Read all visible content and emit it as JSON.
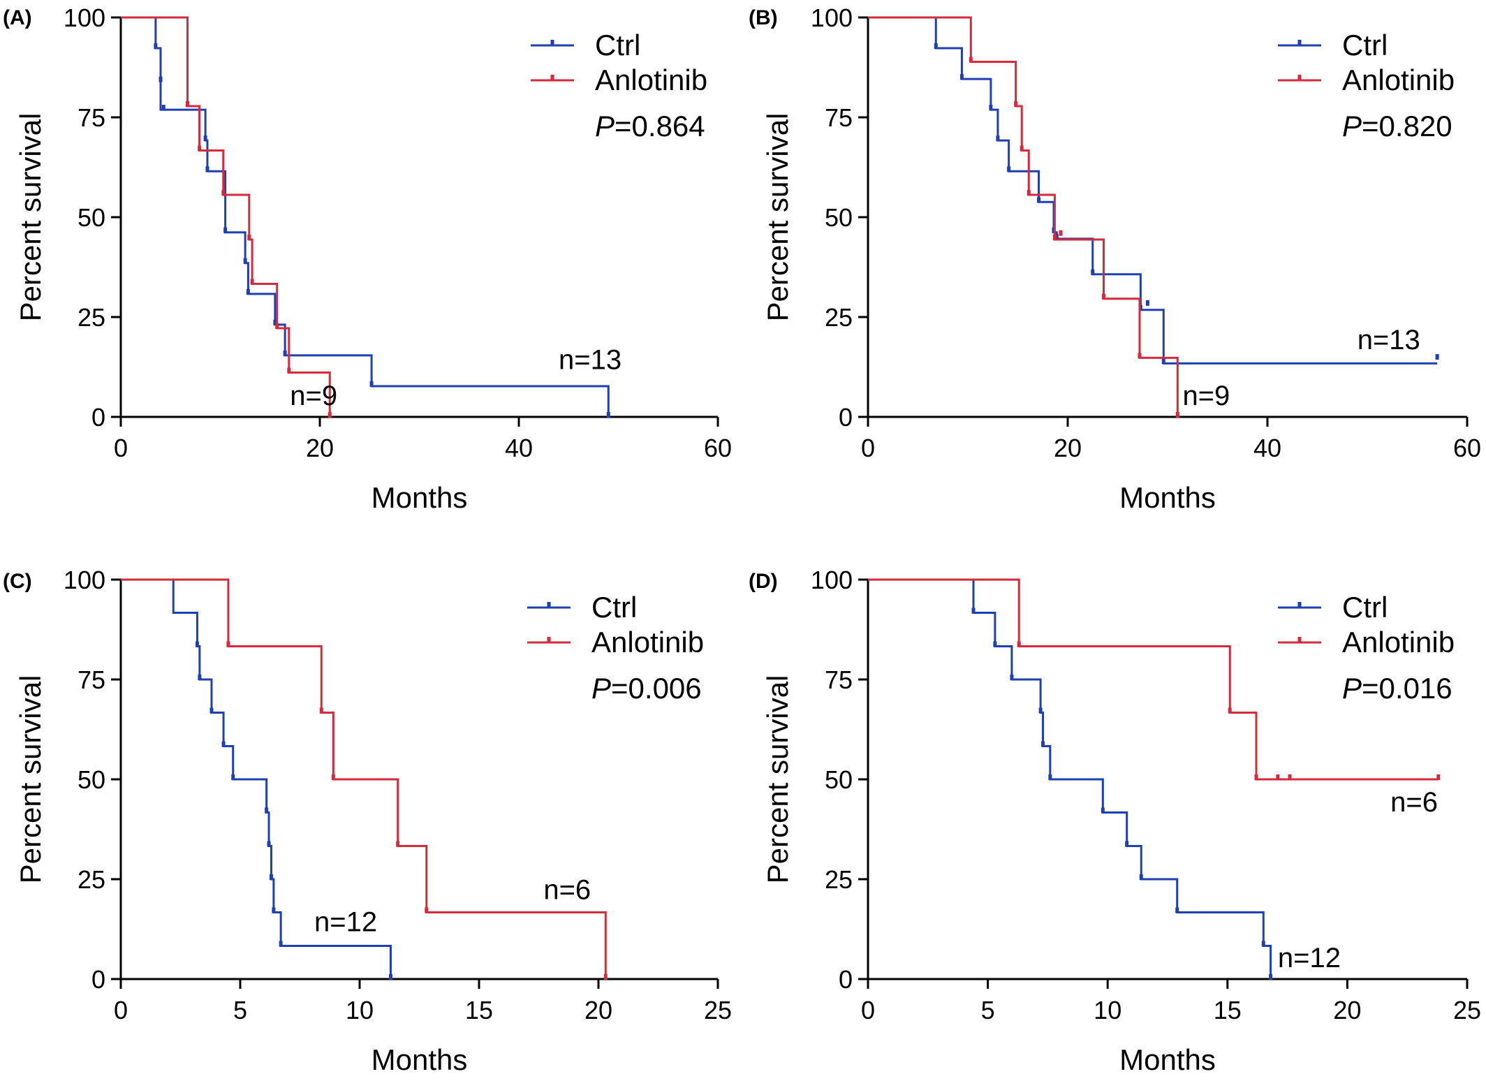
{
  "colors": {
    "ctrl": "#1f3fb5",
    "anlotinib": "#d42a3c",
    "axis": "#000000"
  },
  "chart_data": [
    {
      "type": "line",
      "subtype": "kaplan-meier",
      "panel_label": "(A)",
      "xlabel": "Months",
      "ylabel": "Percent survival",
      "xlim": [
        0,
        60
      ],
      "ylim": [
        0,
        100
      ],
      "xticks": [
        0,
        20,
        40,
        60
      ],
      "yticks": [
        0,
        25,
        50,
        75,
        100
      ],
      "legend": {
        "position": "top-right",
        "entries": [
          "Ctrl",
          "Anlotinib"
        ]
      },
      "p_value": {
        "label": "P",
        "value": "=0.864"
      },
      "series": [
        {
          "name": "Ctrl",
          "color": "#1f3fb5",
          "steps": [
            [
              0,
              100
            ],
            [
              3.5,
              92.3
            ],
            [
              4,
              76.9
            ],
            [
              8.5,
              69.2
            ],
            [
              8.7,
              61.5
            ],
            [
              10.5,
              46.2
            ],
            [
              12.5,
              38.5
            ],
            [
              12.8,
              30.8
            ],
            [
              15.5,
              23.1
            ],
            [
              16.5,
              15.4
            ],
            [
              25.2,
              7.7
            ],
            [
              49,
              0
            ]
          ],
          "censored": [
            [
              3.5,
              92.3
            ],
            [
              4,
              84
            ],
            [
              4.3,
              76.9
            ],
            [
              8.5,
              69.2
            ],
            [
              8.7,
              61.5
            ],
            [
              10.5,
              46.2
            ],
            [
              12.5,
              38.5
            ],
            [
              12.8,
              30.8
            ],
            [
              15.5,
              23.1
            ],
            [
              16.5,
              15.4
            ],
            [
              25.2,
              7.7
            ],
            [
              49,
              0
            ]
          ],
          "n_label": {
            "text": "n=13",
            "x": 44,
            "y": 12
          }
        },
        {
          "name": "Anlotinib",
          "color": "#d42a3c",
          "steps": [
            [
              0,
              100
            ],
            [
              6.7,
              77.8
            ],
            [
              7.9,
              66.7
            ],
            [
              10.3,
              55.6
            ],
            [
              12.9,
              44.4
            ],
            [
              13.2,
              33.3
            ],
            [
              15.7,
              22.2
            ],
            [
              16.9,
              11.1
            ],
            [
              21,
              0
            ]
          ],
          "censored": [
            [
              6.7,
              77.8
            ],
            [
              7.9,
              66.7
            ],
            [
              10.3,
              55.6
            ],
            [
              12.9,
              44.4
            ],
            [
              13.2,
              33.3
            ],
            [
              15.7,
              22.2
            ],
            [
              16.9,
              11.1
            ],
            [
              21,
              0
            ]
          ],
          "n_label": {
            "text": "n=9",
            "x": 17,
            "y": 3
          }
        }
      ]
    },
    {
      "type": "line",
      "subtype": "kaplan-meier",
      "panel_label": "(B)",
      "xlabel": "Months",
      "ylabel": "Percent survival",
      "xlim": [
        0,
        60
      ],
      "ylim": [
        0,
        100
      ],
      "xticks": [
        0,
        20,
        40,
        60
      ],
      "yticks": [
        0,
        25,
        50,
        75,
        100
      ],
      "legend": {
        "position": "top-right",
        "entries": [
          "Ctrl",
          "Anlotinib"
        ]
      },
      "p_value": {
        "label": "P",
        "value": "=0.820"
      },
      "series": [
        {
          "name": "Ctrl",
          "color": "#1f3fb5",
          "steps": [
            [
              0,
              100
            ],
            [
              6.8,
              92.3
            ],
            [
              9.4,
              84.6
            ],
            [
              12.3,
              76.9
            ],
            [
              13,
              69.2
            ],
            [
              14.1,
              61.5
            ],
            [
              17.1,
              53.8
            ],
            [
              18.6,
              46.2
            ],
            [
              18.9,
              44.6
            ],
            [
              22.5,
              35.7
            ],
            [
              27.3,
              26.8
            ],
            [
              29.6,
              13.4
            ],
            [
              57,
              13.4
            ]
          ],
          "censored": [
            [
              6.8,
              92.3
            ],
            [
              9.4,
              84.6
            ],
            [
              12.3,
              76.9
            ],
            [
              13,
              69.2
            ],
            [
              14.1,
              61.5
            ],
            [
              17.1,
              53.8
            ],
            [
              18.6,
              46.2
            ],
            [
              18.9,
              44.6
            ],
            [
              22.5,
              35.7
            ],
            [
              27.3,
              26.8
            ],
            [
              28,
              28
            ],
            [
              29.6,
              13.4
            ],
            [
              57,
              14.5
            ]
          ],
          "n_label": {
            "text": "n=13",
            "x": 49,
            "y": 17
          }
        },
        {
          "name": "Anlotinib",
          "color": "#d42a3c",
          "steps": [
            [
              0,
              100
            ],
            [
              10.3,
              88.9
            ],
            [
              14.8,
              77.8
            ],
            [
              15.4,
              66.7
            ],
            [
              16.1,
              55.6
            ],
            [
              18.7,
              44.4
            ],
            [
              23.6,
              29.6
            ],
            [
              27.2,
              14.8
            ],
            [
              31,
              0
            ]
          ],
          "censored": [
            [
              10.3,
              88.9
            ],
            [
              14.8,
              77.8
            ],
            [
              15.4,
              66.7
            ],
            [
              16.1,
              55.6
            ],
            [
              18.7,
              44.4
            ],
            [
              19.3,
              45.5
            ],
            [
              23.6,
              29.6
            ],
            [
              27.2,
              14.8
            ],
            [
              31,
              0
            ]
          ],
          "n_label": {
            "text": "n=9",
            "x": 31.5,
            "y": 3
          }
        }
      ]
    },
    {
      "type": "line",
      "subtype": "kaplan-meier",
      "panel_label": "(C)",
      "xlabel": "Months",
      "ylabel": "Percent survival",
      "xlim": [
        0,
        25
      ],
      "ylim": [
        0,
        100
      ],
      "xticks": [
        0,
        5,
        10,
        15,
        20,
        25
      ],
      "yticks": [
        0,
        25,
        50,
        75,
        100
      ],
      "legend": {
        "position": "top-right",
        "entries": [
          "Ctrl",
          "Anlotinib"
        ]
      },
      "p_value": {
        "label": "P",
        "value": "=0.006"
      },
      "series": [
        {
          "name": "Ctrl",
          "color": "#1f3fb5",
          "steps": [
            [
              0,
              100
            ],
            [
              2.2,
              91.7
            ],
            [
              3.2,
              83.3
            ],
            [
              3.3,
              75
            ],
            [
              3.8,
              66.7
            ],
            [
              4.3,
              58.3
            ],
            [
              4.7,
              50
            ],
            [
              6.1,
              41.7
            ],
            [
              6.2,
              33.3
            ],
            [
              6.3,
              25
            ],
            [
              6.4,
              16.7
            ],
            [
              6.7,
              8.3
            ],
            [
              11.3,
              0
            ]
          ],
          "censored": [
            [
              3.2,
              83.3
            ],
            [
              3.3,
              75
            ],
            [
              3.8,
              66.7
            ],
            [
              4.3,
              58.3
            ],
            [
              4.7,
              50
            ],
            [
              6.1,
              41.7
            ],
            [
              6.2,
              33.3
            ],
            [
              6.3,
              25
            ],
            [
              6.4,
              16.7
            ],
            [
              6.7,
              8.3
            ],
            [
              11.3,
              0
            ]
          ],
          "n_label": {
            "text": "n=12",
            "x": 8.1,
            "y": 12
          }
        },
        {
          "name": "Anlotinib",
          "color": "#d42a3c",
          "steps": [
            [
              0,
              100
            ],
            [
              4.5,
              83.3
            ],
            [
              8.4,
              66.7
            ],
            [
              8.9,
              50
            ],
            [
              11.6,
              33.3
            ],
            [
              12.8,
              16.7
            ],
            [
              20.3,
              0
            ]
          ],
          "censored": [
            [
              4.5,
              83.3
            ],
            [
              8.4,
              66.7
            ],
            [
              8.9,
              50
            ],
            [
              11.6,
              33.3
            ],
            [
              12.8,
              16.7
            ],
            [
              20.3,
              0
            ]
          ],
          "n_label": {
            "text": "n=6",
            "x": 17.7,
            "y": 20
          }
        }
      ]
    },
    {
      "type": "line",
      "subtype": "kaplan-meier",
      "panel_label": "(D)",
      "xlabel": "Months",
      "ylabel": "Percent survival",
      "xlim": [
        0,
        25
      ],
      "ylim": [
        0,
        100
      ],
      "xticks": [
        0,
        5,
        10,
        15,
        20,
        25
      ],
      "yticks": [
        0,
        25,
        50,
        75,
        100
      ],
      "legend": {
        "position": "top-right",
        "entries": [
          "Ctrl",
          "Anlotinib"
        ]
      },
      "p_value": {
        "label": "P",
        "value": "=0.016"
      },
      "series": [
        {
          "name": "Ctrl",
          "color": "#1f3fb5",
          "steps": [
            [
              0,
              100
            ],
            [
              4.4,
              91.7
            ],
            [
              5.3,
              83.3
            ],
            [
              6.0,
              75
            ],
            [
              7.2,
              66.7
            ],
            [
              7.3,
              58.3
            ],
            [
              7.6,
              50
            ],
            [
              9.8,
              41.7
            ],
            [
              10.8,
              33.3
            ],
            [
              11.4,
              25
            ],
            [
              12.9,
              16.7
            ],
            [
              16.5,
              8.3
            ],
            [
              16.8,
              0
            ]
          ],
          "censored": [
            [
              4.4,
              91.7
            ],
            [
              5.3,
              83.3
            ],
            [
              6.0,
              75
            ],
            [
              7.2,
              66.7
            ],
            [
              7.3,
              58.3
            ],
            [
              7.6,
              50
            ],
            [
              9.8,
              41.7
            ],
            [
              10.8,
              33.3
            ],
            [
              11.4,
              25
            ],
            [
              12.9,
              16.7
            ],
            [
              16.5,
              8.3
            ],
            [
              16.8,
              0
            ]
          ],
          "n_label": {
            "text": "n=12",
            "x": 17.1,
            "y": 3
          }
        },
        {
          "name": "Anlotinib",
          "color": "#d42a3c",
          "steps": [
            [
              0,
              100
            ],
            [
              6.3,
              83.3
            ],
            [
              15.1,
              66.7
            ],
            [
              16.2,
              50
            ],
            [
              23.8,
              50
            ]
          ],
          "censored": [
            [
              6.3,
              83.3
            ],
            [
              15.1,
              66.7
            ],
            [
              16.2,
              50
            ],
            [
              17.1,
              50
            ],
            [
              17.6,
              50
            ],
            [
              23.8,
              50
            ]
          ],
          "n_label": {
            "text": "n=6",
            "x": 21.8,
            "y": 42
          }
        }
      ]
    }
  ]
}
